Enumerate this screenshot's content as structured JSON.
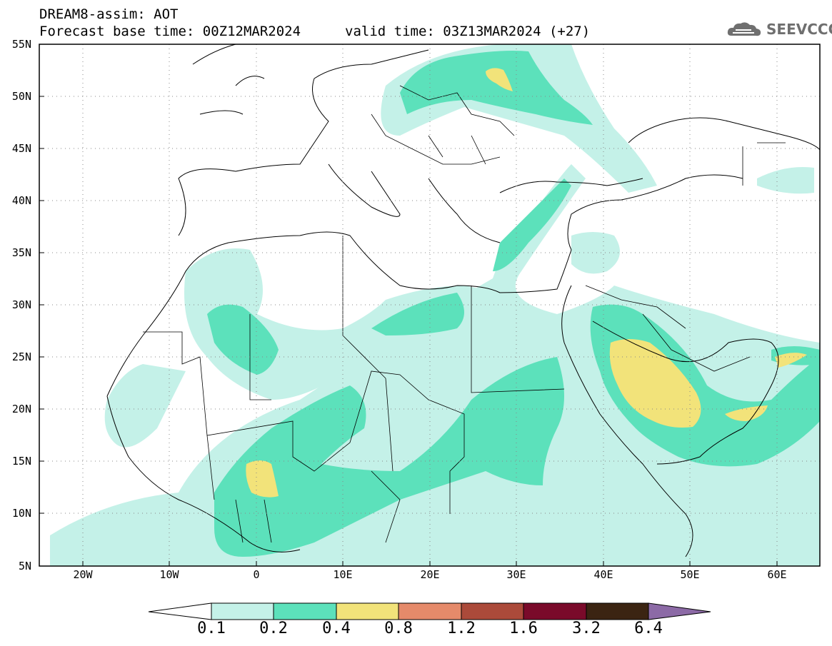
{
  "header": {
    "title": "DREAM8-assim: AOT",
    "forecast_base": "Forecast base time: 00Z12MAR2024",
    "valid_time": "valid time: 03Z13MAR2024 (+27)",
    "logo_text": "SEEVCCC"
  },
  "map": {
    "region": "North Africa, Europe and Middle East",
    "lon_range": [
      -25,
      65
    ],
    "lat_range": [
      5,
      55
    ],
    "lat_labels": [
      "55N",
      "50N",
      "45N",
      "40N",
      "35N",
      "30N",
      "25N",
      "20N",
      "15N",
      "10N",
      "5N"
    ],
    "lon_labels": [
      "20W",
      "10W",
      "0",
      "10E",
      "20E",
      "30E",
      "40E",
      "50E",
      "60E"
    ],
    "grid": true
  },
  "colorbar": {
    "labels": [
      "0.1",
      "0.2",
      "0.4",
      "0.8",
      "1.2",
      "1.6",
      "3.2",
      "6.4"
    ],
    "colors": [
      "#ffffff",
      "#c4f1e8",
      "#5ce1bb",
      "#f2e37a",
      "#e58a6a",
      "#ab4a3a",
      "#7a0a2a",
      "#3b2412",
      "#8c6aa6"
    ]
  }
}
